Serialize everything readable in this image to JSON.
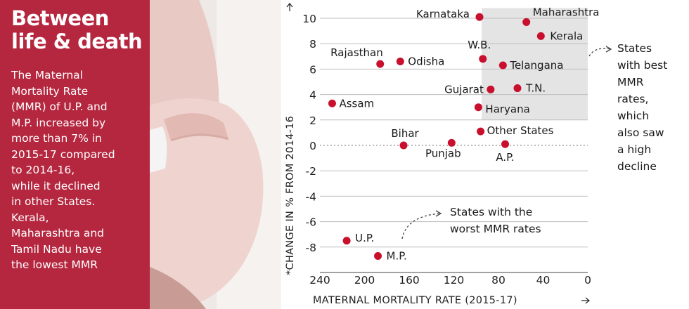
{
  "sidebar": {
    "headline_line1": "Between",
    "headline_line2": "life & death",
    "body_lines": [
      "The Maternal",
      "Mortality Rate",
      "(MMR) of U.P. and",
      "M.P. increased by",
      "more than 7% in",
      "2015-17 compared",
      "to 2014-16,",
      "while it declined",
      "in other States.",
      "Kerala,",
      "Maharashtra and",
      "Tamil Nadu have",
      "the lowest MMR"
    ]
  },
  "colors": {
    "panel": "#b5263f",
    "point": "#c8102e",
    "highlight": "#e4e4e4",
    "grid": "#bdbdbd"
  },
  "chart_data": {
    "type": "scatter",
    "xlabel": "MATERNAL MORTALITY RATE (2015-17)",
    "ylabel": "*CHANGE IN % FROM 2014-16",
    "xlim": [
      240,
      0
    ],
    "ylim": [
      -10,
      10
    ],
    "x_ticks": [
      240,
      200,
      160,
      120,
      80,
      40,
      0
    ],
    "y_ticks": [
      10,
      8,
      6,
      4,
      2,
      0,
      -2,
      -4,
      -6,
      -8
    ],
    "x_reversed": true,
    "grid": true,
    "points": [
      {
        "label": "Karnataka",
        "x": 97,
        "y": 10.1
      },
      {
        "label": "Maharashtra",
        "x": 55,
        "y": 9.7
      },
      {
        "label": "Kerala",
        "x": 42,
        "y": 8.6
      },
      {
        "label": "Rajasthan",
        "x": 186,
        "y": 6.4
      },
      {
        "label": "Odisha",
        "x": 168,
        "y": 6.6
      },
      {
        "label": "W.B.",
        "x": 94,
        "y": 6.8
      },
      {
        "label": "Telangana",
        "x": 76,
        "y": 6.3
      },
      {
        "label": "Gujarat",
        "x": 87,
        "y": 4.4
      },
      {
        "label": "T.N.",
        "x": 63,
        "y": 4.5
      },
      {
        "label": "Assam",
        "x": 229,
        "y": 3.3
      },
      {
        "label": "Haryana",
        "x": 98,
        "y": 3.0
      },
      {
        "label": "Bihar",
        "x": 165,
        "y": 0
      },
      {
        "label": "Other States",
        "x": 96,
        "y": 1.1
      },
      {
        "label": "Punjab",
        "x": 122,
        "y": 0.2
      },
      {
        "label": "A.P.",
        "x": 74,
        "y": 0.1
      },
      {
        "label": "U.P.",
        "x": 216,
        "y": -7.5
      },
      {
        "label": "M.P.",
        "x": 188,
        "y": -8.7
      }
    ],
    "annotations": [
      {
        "lines": [
          "States",
          "with best",
          "MMR",
          "rates,",
          "which",
          "also saw",
          "a high",
          "decline"
        ]
      },
      {
        "lines": [
          "States with the",
          "worst MMR rates"
        ]
      }
    ]
  }
}
